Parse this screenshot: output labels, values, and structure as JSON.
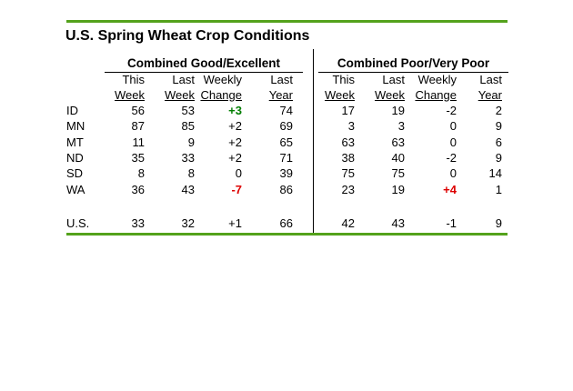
{
  "title": "U.S. Spring Wheat Crop Conditions",
  "colors": {
    "rule_green": "#54a21c",
    "positive": "#007d00",
    "negative": "#dd0000",
    "text": "#000000",
    "background": "#ffffff"
  },
  "column_headers": {
    "line1": [
      "This",
      "Last",
      "Weekly",
      "Last"
    ],
    "line2": [
      "Week",
      "Week",
      "Change",
      "Year"
    ]
  },
  "row_labels": [
    "ID",
    "MN",
    "MT",
    "ND",
    "SD",
    "WA"
  ],
  "total_label": "U.S.",
  "tables": [
    {
      "name": "good_excellent",
      "header": "Combined Good/Excellent",
      "rows": [
        {
          "this_week": "56",
          "last_week": "53",
          "weekly_change": "+3",
          "change_color": "positive",
          "last_year": "74"
        },
        {
          "this_week": "87",
          "last_week": "85",
          "weekly_change": "+2",
          "change_color": "",
          "last_year": "69"
        },
        {
          "this_week": "11",
          "last_week": "9",
          "weekly_change": "+2",
          "change_color": "",
          "last_year": "65"
        },
        {
          "this_week": "35",
          "last_week": "33",
          "weekly_change": "+2",
          "change_color": "",
          "last_year": "71"
        },
        {
          "this_week": "8",
          "last_week": "8",
          "weekly_change": "0",
          "change_color": "",
          "last_year": "39"
        },
        {
          "this_week": "36",
          "last_week": "43",
          "weekly_change": "-7",
          "change_color": "negative",
          "last_year": "86"
        }
      ],
      "total": {
        "this_week": "33",
        "last_week": "32",
        "weekly_change": "+1",
        "change_color": "",
        "last_year": "66"
      }
    },
    {
      "name": "poor_very_poor",
      "header": "Combined Poor/Very Poor",
      "rows": [
        {
          "this_week": "17",
          "last_week": "19",
          "weekly_change": "-2",
          "change_color": "",
          "last_year": "2"
        },
        {
          "this_week": "3",
          "last_week": "3",
          "weekly_change": "0",
          "change_color": "",
          "last_year": "9"
        },
        {
          "this_week": "63",
          "last_week": "63",
          "weekly_change": "0",
          "change_color": "",
          "last_year": "6"
        },
        {
          "this_week": "38",
          "last_week": "40",
          "weekly_change": "-2",
          "change_color": "",
          "last_year": "9"
        },
        {
          "this_week": "75",
          "last_week": "75",
          "weekly_change": "0",
          "change_color": "",
          "last_year": "14"
        },
        {
          "this_week": "23",
          "last_week": "19",
          "weekly_change": "+4",
          "change_color": "negative",
          "last_year": "1"
        }
      ],
      "total": {
        "this_week": "42",
        "last_week": "43",
        "weekly_change": "-1",
        "change_color": "",
        "last_year": "9"
      }
    }
  ]
}
